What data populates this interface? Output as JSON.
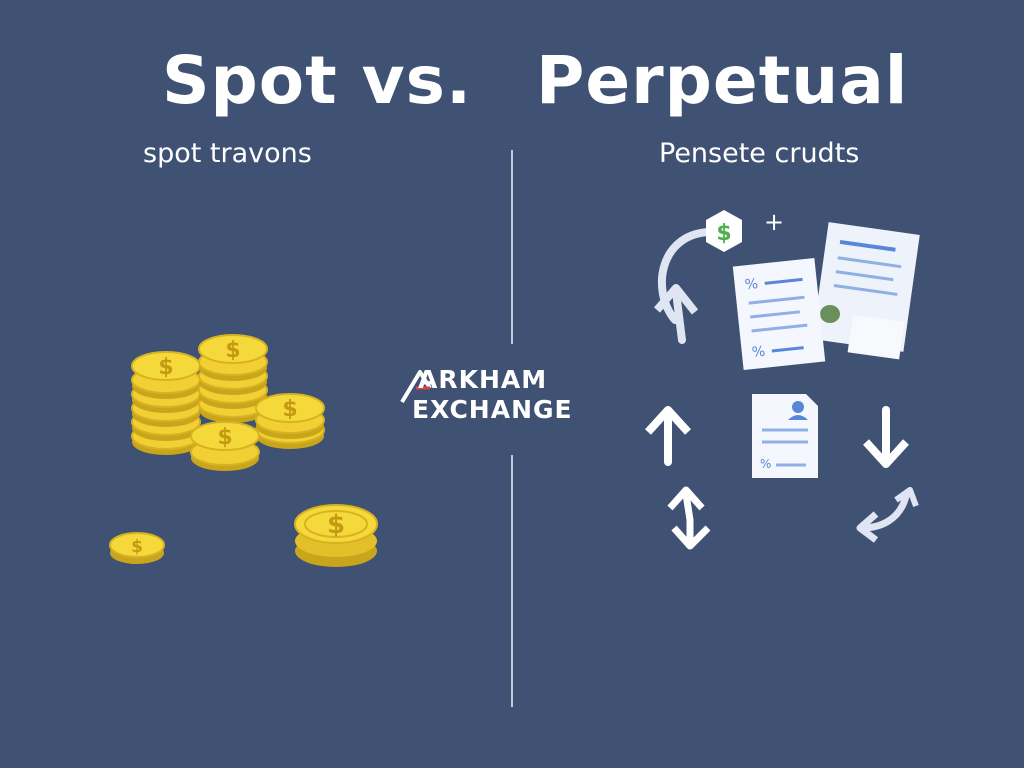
{
  "header": {
    "title_left": "Spot vs.",
    "title_right": "Perpetual"
  },
  "left_panel": {
    "subtitle": "spot travons",
    "icons": [
      "coin-stack-icon",
      "coin-icon"
    ]
  },
  "right_panel": {
    "subtitle": "Pensete crudts",
    "icons": [
      "dollar-hexagon-icon",
      "plus-icon",
      "document-icon",
      "contract-icon",
      "arrow-up-icon",
      "arrow-down-icon",
      "swap-icon",
      "cycle-arrow-icon"
    ],
    "doc_text_1": "%",
    "doc_text_2": "%",
    "doc_text_3": "%",
    "dollar": "$",
    "plus": "+"
  },
  "logo": {
    "line1": "ARKHAM",
    "line2": "EXCHANGE"
  },
  "colors": {
    "background": "#3f5273",
    "coin_gold": "#f2d033",
    "coin_shadow": "#c9a51c",
    "text": "#ffffff",
    "accent_blue": "#5a86d8",
    "accent_green": "#4caf50"
  }
}
